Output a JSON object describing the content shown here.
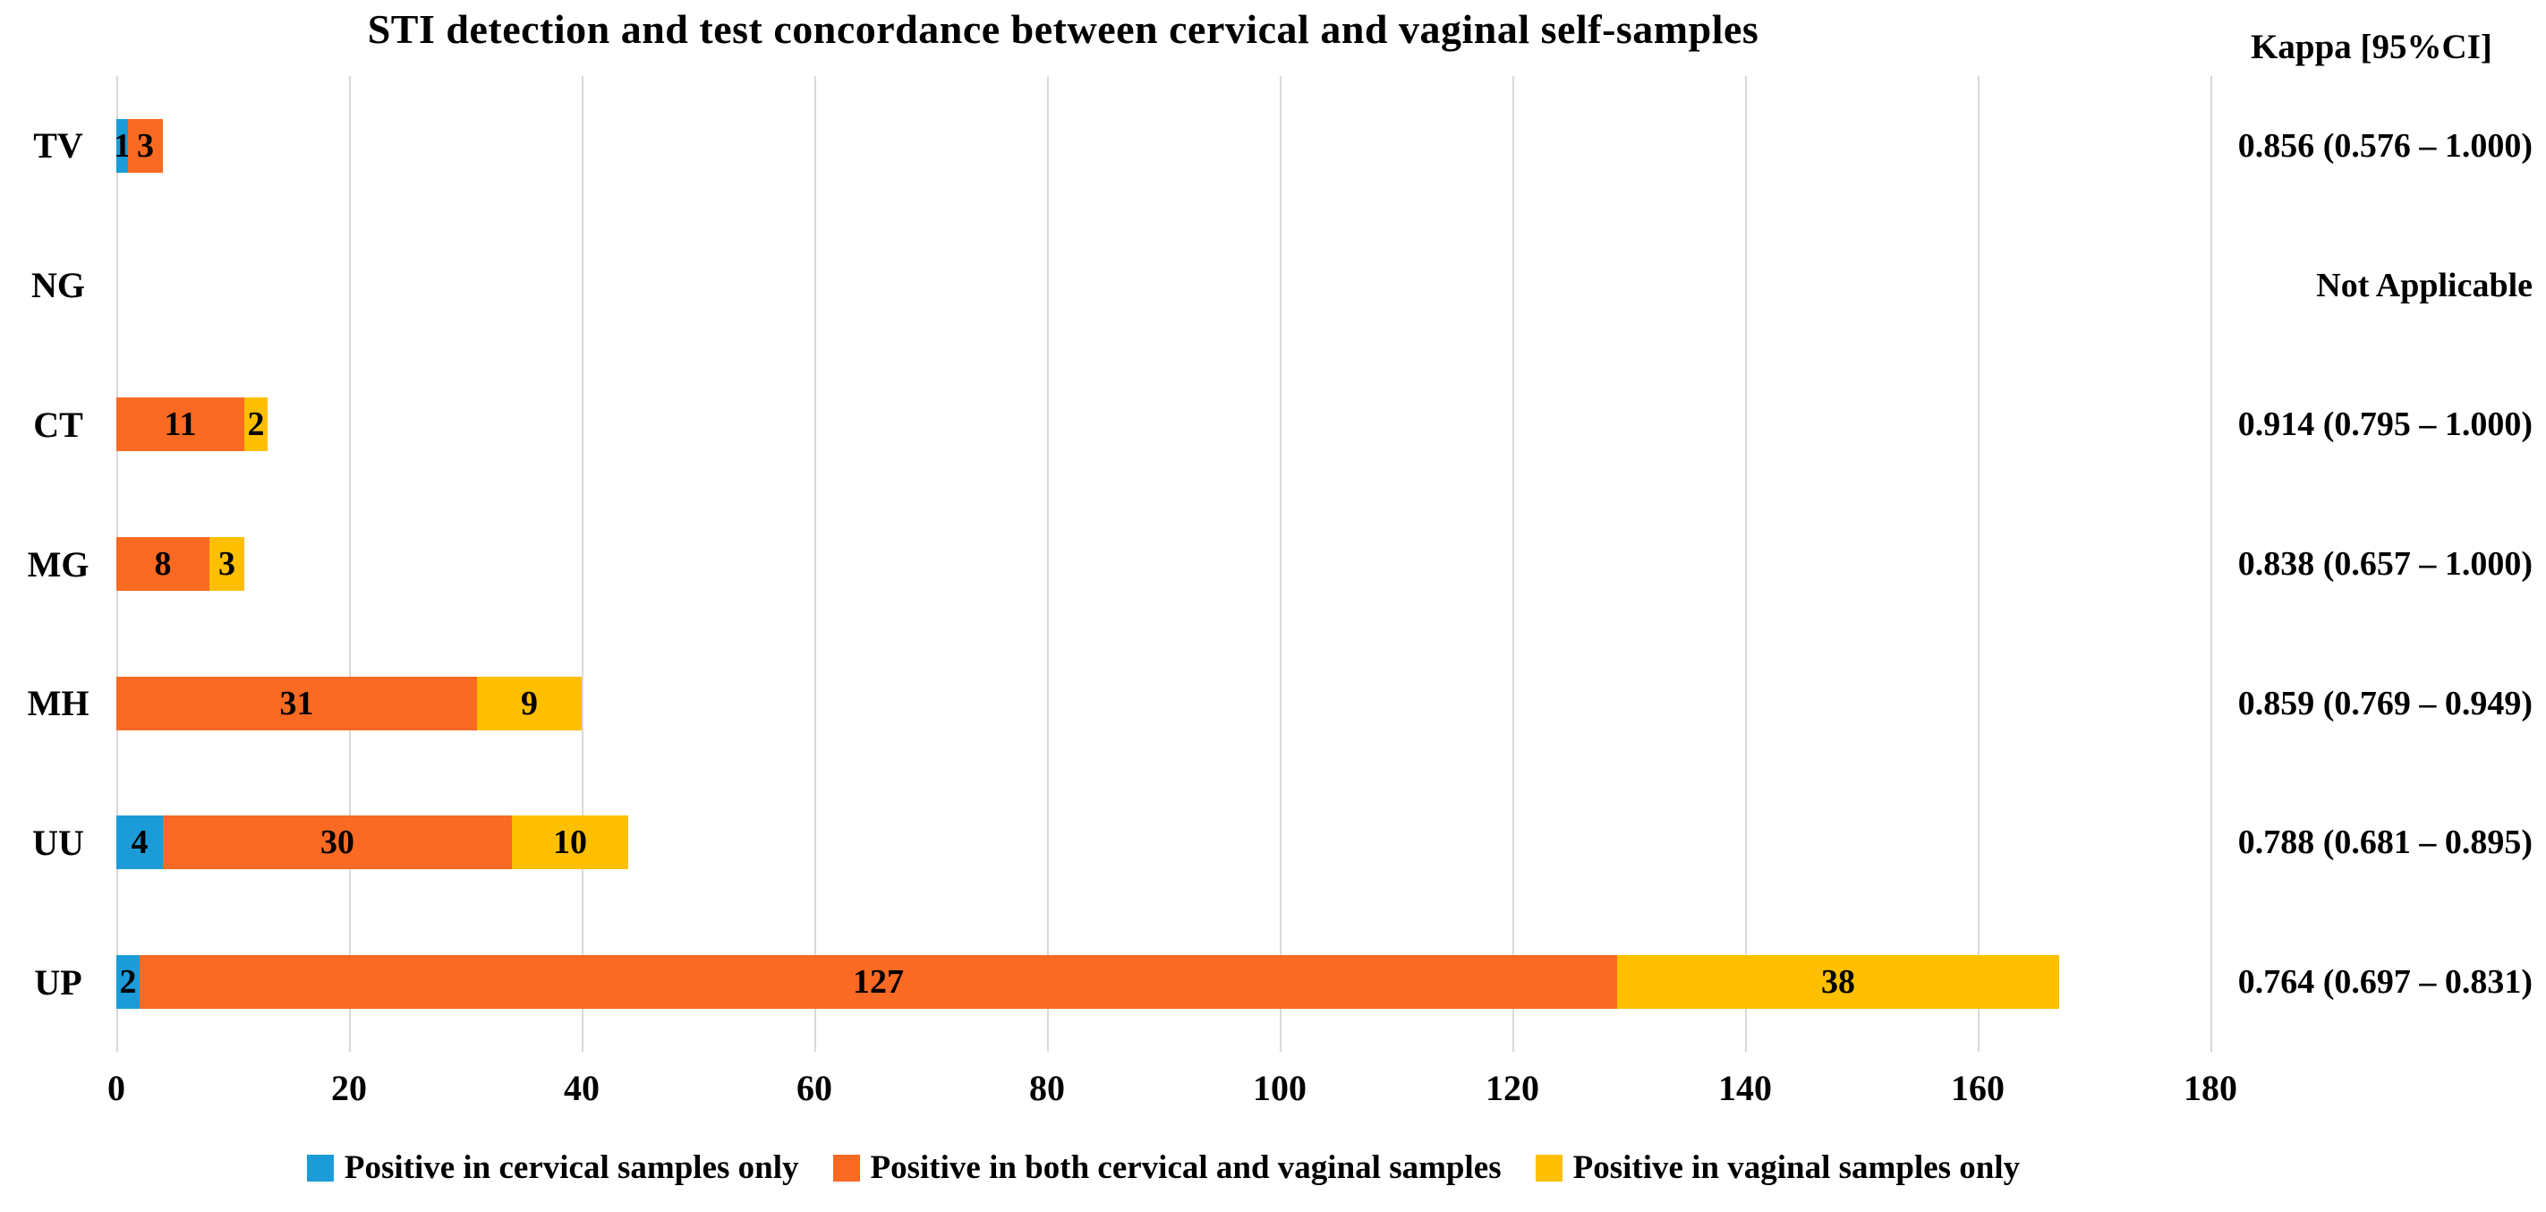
{
  "title": "STI detection and test concordance between cervical and vaginal self-samples",
  "kappa_header": "Kappa [95%CI]",
  "colors": {
    "cervical_only": "#1B9CD8",
    "both": "#FA6A23",
    "vaginal_only": "#FDBF00",
    "gridline": "#D9D9D9",
    "text": "#000000"
  },
  "chart_data": {
    "type": "bar",
    "orientation": "horizontal",
    "stacked": true,
    "grid": true,
    "title": "STI detection and test concordance between cervical and vaginal self-samples",
    "xlabel": "",
    "ylabel": "",
    "xlim": [
      0,
      180
    ],
    "xticks": [
      0,
      20,
      40,
      60,
      80,
      100,
      120,
      140,
      160,
      180
    ],
    "categories": [
      "TV",
      "NG",
      "CT",
      "MG",
      "MH",
      "UU",
      "UP"
    ],
    "series": [
      {
        "name": "Positive in cervical samples only",
        "color": "#1B9CD8",
        "values": [
          1,
          0,
          0,
          0,
          0,
          4,
          2
        ]
      },
      {
        "name": "Positive in both cervical and vaginal samples",
        "color": "#FA6A23",
        "values": [
          3,
          0,
          11,
          8,
          31,
          30,
          127
        ]
      },
      {
        "name": "Positive in vaginal samples only",
        "color": "#FDBF00",
        "values": [
          0,
          0,
          2,
          3,
          9,
          10,
          38
        ]
      }
    ],
    "annotations": {
      "kappa_column_header": "Kappa [95%CI]",
      "kappa_values": [
        "0.856 (0.576 – 1.000)",
        "Not Applicable",
        "0.914 (0.795 – 1.000)",
        "0.838 (0.657 – 1.000)",
        "0.859 (0.769 – 0.949)",
        "0.788 (0.681 – 0.895)",
        "0.764 (0.697 – 0.831)"
      ]
    },
    "legend_position": "bottom"
  }
}
